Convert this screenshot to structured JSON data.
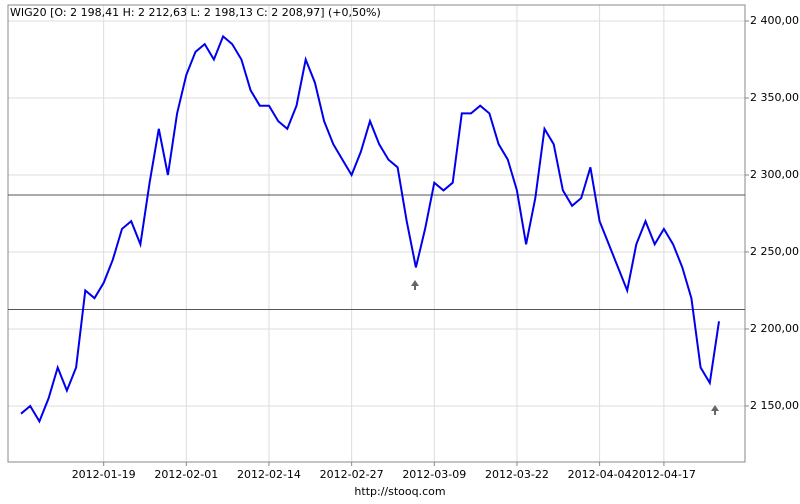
{
  "chart_data": {
    "type": "line",
    "title": "WIG20 [O: 2 198,41  H: 2 212,63  L: 2 198,13  C: 2 208,97] (+0,50%)",
    "source": "http://stooq.com",
    "categories": [
      null,
      null,
      null,
      null,
      null,
      null,
      null,
      null,
      null,
      "2012-01-19",
      null,
      null,
      null,
      null,
      null,
      null,
      null,
      null,
      "2012-02-01",
      null,
      null,
      null,
      null,
      null,
      null,
      null,
      null,
      "2012-02-14",
      null,
      null,
      null,
      null,
      null,
      null,
      null,
      null,
      "2012-02-27",
      null,
      null,
      null,
      null,
      null,
      null,
      null,
      null,
      "2012-03-09",
      null,
      null,
      null,
      null,
      null,
      null,
      null,
      null,
      "2012-03-22",
      null,
      null,
      null,
      null,
      null,
      null,
      null,
      null,
      "2012-04-04",
      null,
      null,
      null,
      null,
      null,
      null,
      "2012-04-17",
      null,
      null,
      null,
      null,
      null,
      null
    ],
    "series": [
      {
        "name": "WIG20",
        "color": "#0000ee",
        "values": [
          2145,
          2150,
          2140,
          2155,
          2175,
          2160,
          2175,
          2225,
          2220,
          2230,
          2245,
          2265,
          2270,
          2255,
          2295,
          2330,
          2300,
          2340,
          2365,
          2380,
          2385,
          2375,
          2390,
          2385,
          2375,
          2355,
          2345,
          2345,
          2335,
          2330,
          2345,
          2375,
          2360,
          2335,
          2320,
          2310,
          2300,
          2315,
          2335,
          2320,
          2310,
          2305,
          2270,
          2240,
          2265,
          2295,
          2290,
          2295,
          2340,
          2340,
          2345,
          2340,
          2320,
          2310,
          2290,
          2255,
          2285,
          2330,
          2320,
          2290,
          2280,
          2285,
          2305,
          2270,
          2255,
          2240,
          2225,
          2255,
          2270,
          2255,
          2265,
          2255,
          2240,
          2220,
          2175,
          2165,
          2205
        ]
      }
    ],
    "reference_lines": [
      2287,
      2212.63
    ],
    "ylim": [
      2113.6,
      2410.4
    ],
    "yticks": [
      {
        "value": 2150,
        "label": "2 150,00"
      },
      {
        "value": 2200,
        "label": "2 200,00"
      },
      {
        "value": 2250,
        "label": "2 250,00"
      },
      {
        "value": 2300,
        "label": "2 300,00"
      },
      {
        "value": 2350,
        "label": "2 350,00"
      },
      {
        "value": 2400,
        "label": "2 400,00"
      }
    ],
    "grid": true
  }
}
